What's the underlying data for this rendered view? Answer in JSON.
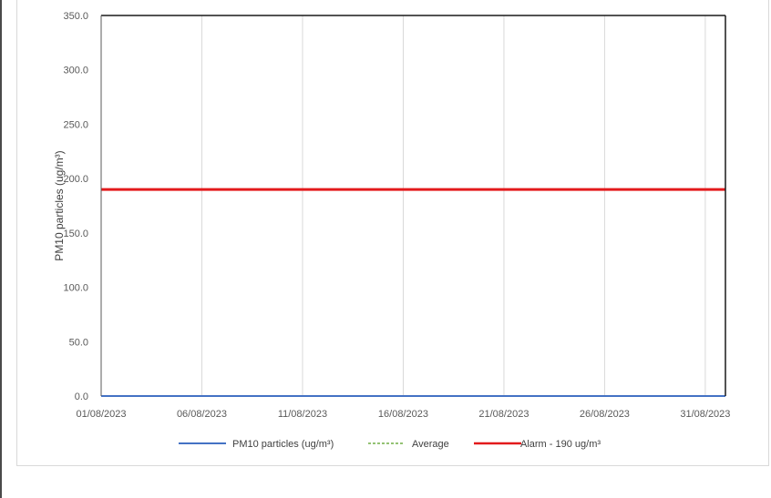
{
  "chart_data": {
    "type": "line",
    "title": "",
    "xlabel": "",
    "ylabel": "PM10 particles (ug/m³)",
    "ylim": [
      0,
      350
    ],
    "yticks": [
      "0.0",
      "50.0",
      "100.0",
      "150.0",
      "200.0",
      "250.0",
      "300.0",
      "350.0"
    ],
    "xticks": [
      "01/08/2023",
      "06/08/2023",
      "11/08/2023",
      "16/08/2023",
      "21/08/2023",
      "26/08/2023",
      "31/08/2023"
    ],
    "xlim": [
      "01/08/2023",
      "01/09/2023"
    ],
    "grid": "vertical",
    "legend_position": "bottom",
    "series": [
      {
        "name": "PM10 particles (ug/m³)",
        "color": "#4472c4",
        "style": "solid",
        "x": [
          "01/08/2023",
          "01/09/2023"
        ],
        "values": [
          0,
          0
        ]
      },
      {
        "name": "Average",
        "color": "#70ad47",
        "style": "dashed",
        "x": [],
        "values": []
      },
      {
        "name": "Alarm - 190 ug/m³",
        "color": "#e31a1c",
        "style": "solid",
        "x": [
          "01/08/2023",
          "01/09/2023"
        ],
        "values": [
          190,
          190
        ]
      }
    ]
  }
}
